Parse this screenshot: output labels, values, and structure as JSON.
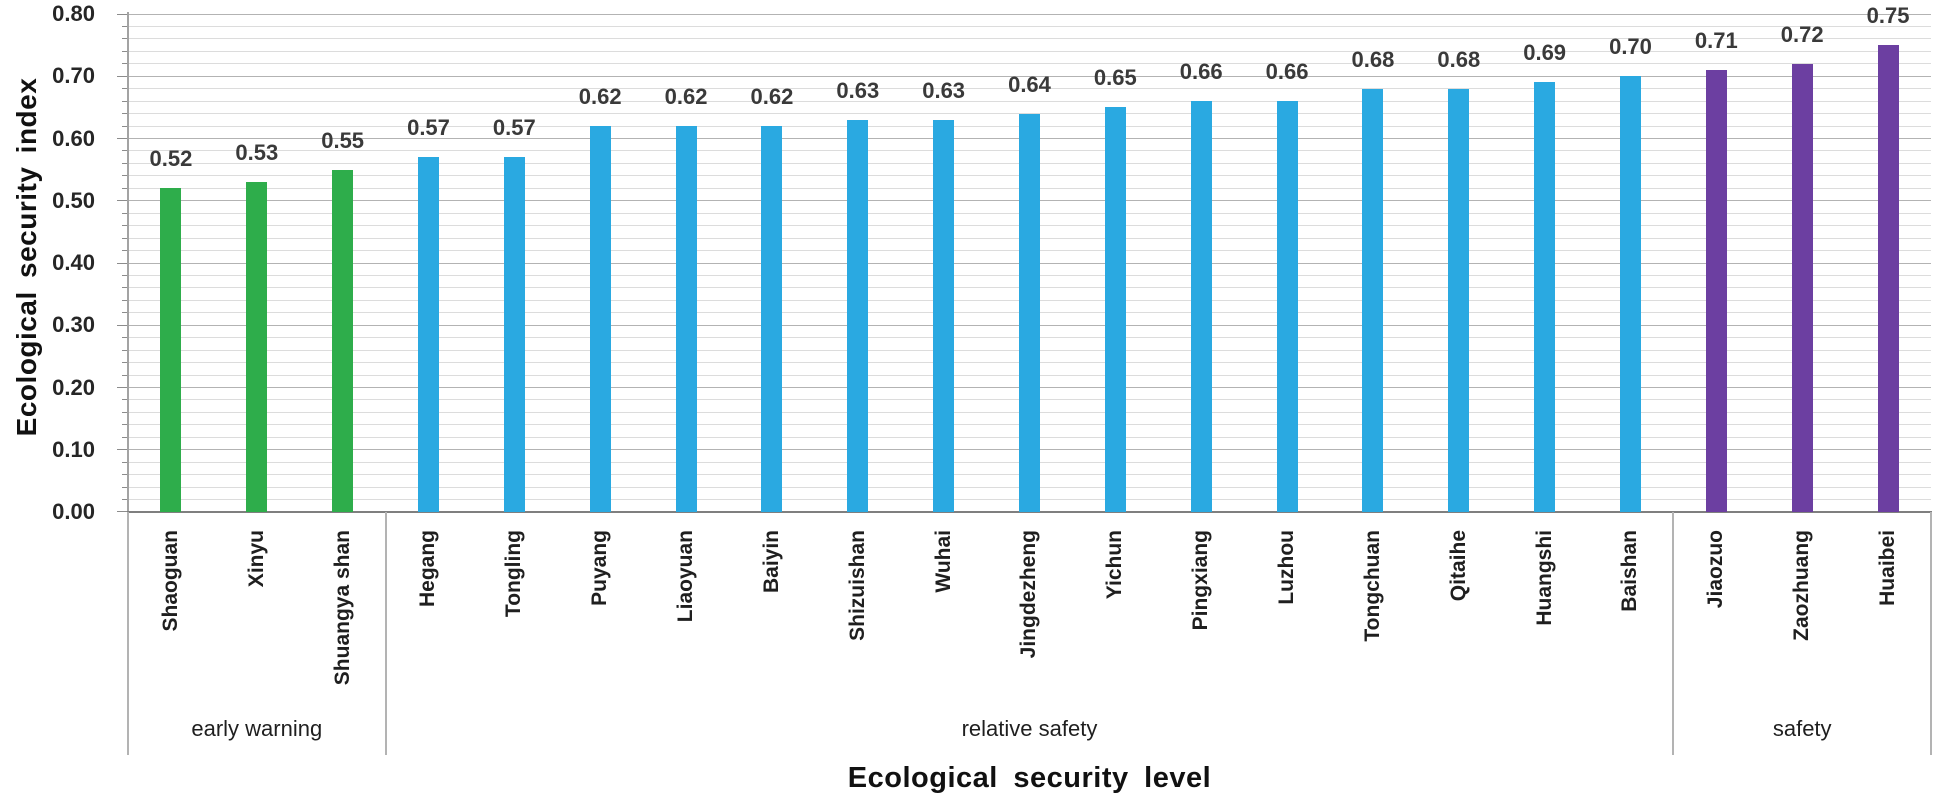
{
  "page": {
    "background_color": "#ffffff"
  },
  "chart_data": {
    "type": "bar",
    "title": "",
    "xlabel": "Ecological security level",
    "ylabel": "Ecological security index",
    "ylim": [
      0,
      0.8
    ],
    "y_major_step": 0.1,
    "y_minor_step": 0.02,
    "y_tick_labels": [
      "0.00",
      "0.10",
      "0.20",
      "0.30",
      "0.40",
      "0.50",
      "0.60",
      "0.70",
      "0.80"
    ],
    "grid": "horizontal, minor every 0.02 (light gray), major every 0.10 (darker gray)",
    "legend_position": "none",
    "bar_value_labels_shown": true,
    "value_label_format": "0.00",
    "categories": [
      "Shaoguan",
      "Xinyu",
      "Shuangya shan",
      "Hegang",
      "Tongling",
      "Puyang",
      "Liaoyuan",
      "Baiyin",
      "Shizuishan",
      "Wuhai",
      "Jingdezheng",
      "Yichun",
      "Pingxiang",
      "Luzhou",
      "Tongchuan",
      "Qitaihe",
      "Huangshi",
      "Baishan",
      "Jiaozuo",
      "Zaozhuang",
      "Huaibei"
    ],
    "values": [
      0.52,
      0.53,
      0.55,
      0.57,
      0.57,
      0.62,
      0.62,
      0.62,
      0.63,
      0.63,
      0.64,
      0.65,
      0.66,
      0.66,
      0.68,
      0.68,
      0.69,
      0.7,
      0.71,
      0.72,
      0.75
    ],
    "groups": [
      {
        "label": "early warning",
        "color": "#2ead4b",
        "cities": [
          "Shaoguan",
          "Xinyu",
          "Shuangya shan"
        ],
        "values": [
          0.52,
          0.53,
          0.55
        ]
      },
      {
        "label": "relative safety",
        "color": "#2aa9e1",
        "cities": [
          "Hegang",
          "Tongling",
          "Puyang",
          "Liaoyuan",
          "Baiyin",
          "Shizuishan",
          "Wuhai",
          "Jingdezheng",
          "Yichun",
          "Pingxiang",
          "Luzhou",
          "Tongchuan",
          "Qitaihe",
          "Huangshi",
          "Baishan"
        ],
        "values": [
          0.57,
          0.57,
          0.62,
          0.62,
          0.62,
          0.63,
          0.63,
          0.64,
          0.65,
          0.66,
          0.66,
          0.68,
          0.68,
          0.69,
          0.7
        ]
      },
      {
        "label": "safety",
        "color": "#6c3fa1",
        "cities": [
          "Jiaozuo",
          "Zaozhuang",
          "Huaibei"
        ],
        "values": [
          0.71,
          0.72,
          0.75
        ]
      }
    ]
  },
  "colors": {
    "early_warning_bar": "#2ead4b",
    "relative_safety_bar": "#2aa9e1",
    "safety_bar": "#6c3fa1",
    "minor_gridline": "#dcdcdc",
    "major_gridline": "#b3b3b3",
    "axis_line": "#7f7f7f",
    "text": "#1f1f1f"
  }
}
